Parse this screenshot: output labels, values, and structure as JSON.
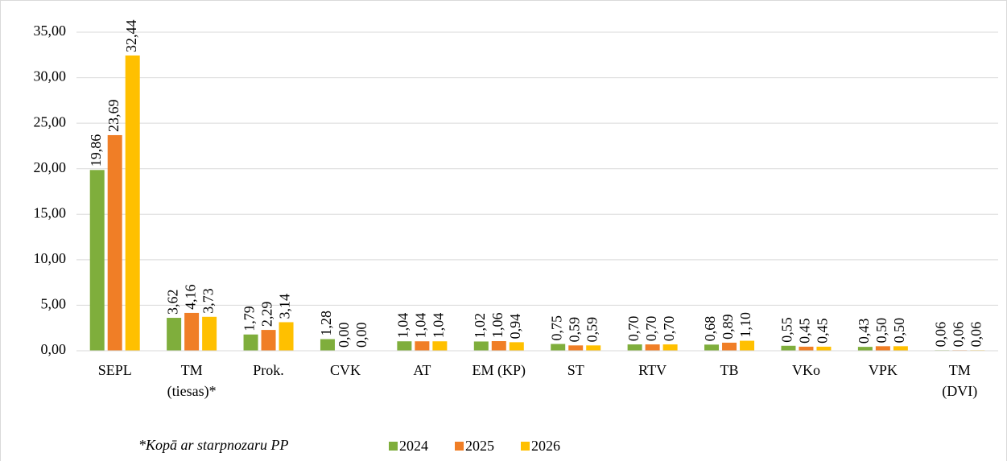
{
  "chart_data": {
    "type": "bar",
    "categories": [
      [
        "SEPL"
      ],
      [
        "TM",
        "(tiesas)*"
      ],
      [
        "Prok."
      ],
      [
        "CVK"
      ],
      [
        "AT"
      ],
      [
        "EM (KP)"
      ],
      [
        "ST"
      ],
      [
        "RTV"
      ],
      [
        "TB"
      ],
      [
        "VKo"
      ],
      [
        "VPK"
      ],
      [
        "TM",
        "(DVI)"
      ]
    ],
    "series": [
      {
        "name": "2024",
        "color": "#7fae3c",
        "values": [
          19.86,
          3.62,
          1.79,
          1.28,
          1.04,
          1.02,
          0.75,
          0.7,
          0.68,
          0.55,
          0.43,
          0.06
        ],
        "value_labels": [
          "19,86",
          "3,62",
          "1,79",
          "1,28",
          "1,04",
          "1,02",
          "0,75",
          "0,70",
          "0,68",
          "0,55",
          "0,43",
          "0,06"
        ]
      },
      {
        "name": "2025",
        "color": "#f07e26",
        "values": [
          23.69,
          4.16,
          2.29,
          0.0,
          1.04,
          1.06,
          0.59,
          0.7,
          0.89,
          0.45,
          0.5,
          0.06
        ],
        "value_labels": [
          "23,69",
          "4,16",
          "2,29",
          "0,00",
          "1,04",
          "1,06",
          "0,59",
          "0,70",
          "0,89",
          "0,45",
          "0,50",
          "0,06"
        ]
      },
      {
        "name": "2026",
        "color": "#ffc000",
        "values": [
          32.44,
          3.73,
          3.14,
          0.0,
          1.04,
          0.94,
          0.59,
          0.7,
          1.1,
          0.45,
          0.5,
          0.06
        ],
        "value_labels": [
          "32,44",
          "3,73",
          "3,14",
          "0,00",
          "1,04",
          "0,94",
          "0,59",
          "0,70",
          "1,10",
          "0,45",
          "0,50",
          "0,06"
        ]
      }
    ],
    "ylim": [
      0,
      35
    ],
    "yticks": [
      {
        "value": 0,
        "label": "0,00"
      },
      {
        "value": 5,
        "label": "5,00"
      },
      {
        "value": 10,
        "label": "10,00"
      },
      {
        "value": 15,
        "label": "15,00"
      },
      {
        "value": 20,
        "label": "20,00"
      },
      {
        "value": 25,
        "label": "25,00"
      },
      {
        "value": 30,
        "label": "30,00"
      },
      {
        "value": 35,
        "label": "35,00"
      }
    ],
    "grid": true,
    "legend": "bottom",
    "footnote": "*Kopā ar starpnozaru PP"
  }
}
